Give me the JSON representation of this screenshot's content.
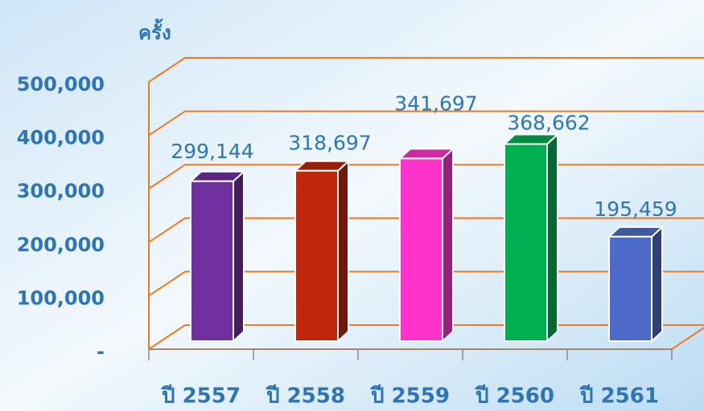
{
  "chart_data": {
    "type": "bar3d",
    "y_axis_label": "ครั้ง",
    "categories": [
      "ปี 2557",
      "ปี 2558",
      "ปี 2559",
      "ปี 2560",
      "ปี 2561"
    ],
    "values": [
      299144,
      318697,
      341697,
      368662,
      195459
    ],
    "value_labels": [
      "299,144",
      "318,697",
      "341,697",
      "368,662",
      "195,459"
    ],
    "colors": [
      "#7030a0",
      "#c0260c",
      "#ff33cc",
      "#00b050",
      "#4f6bc9"
    ],
    "ylim": [
      0,
      500000
    ],
    "yticks": [
      {
        "value": 0,
        "label": "-"
      },
      {
        "value": 100000,
        "label": "100,000"
      },
      {
        "value": 200000,
        "label": "200,000"
      },
      {
        "value": 300000,
        "label": "300,000"
      },
      {
        "value": 400000,
        "label": "400,000"
      },
      {
        "value": 500000,
        "label": "500,000"
      }
    ],
    "grid": true
  }
}
